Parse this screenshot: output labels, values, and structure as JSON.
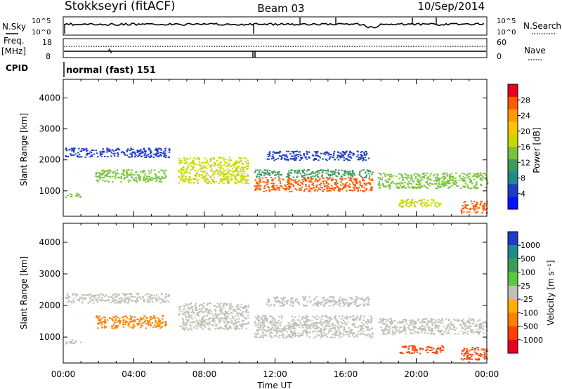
{
  "header": {
    "station": "Stokkseyri (fitACF)",
    "beam": "Beam 03",
    "date": "10/Sep/2014"
  },
  "nsky_panel": {
    "left_label": "N.Sky",
    "right_label": "N.Search",
    "left_ticks": [
      "10^5",
      "10^0"
    ],
    "right_ticks": [
      "10^5",
      "10^0"
    ]
  },
  "freq_panel": {
    "left_label": "Freq.",
    "left_unit": "[MHz]",
    "right_label": "Nave",
    "left_ticks": [
      "18",
      "8"
    ],
    "right_ticks": [
      "60",
      "0"
    ]
  },
  "cpid_panel": {
    "label": "CPID",
    "program": "normal (fast) 151"
  },
  "chart_data": [
    {
      "type": "heatmap",
      "title": "",
      "xlabel": "",
      "ylabel": "Slant Range [km]",
      "x_ticks": [
        "00:00",
        "04:00",
        "08:00",
        "12:00",
        "16:00",
        "20:00",
        "00:00"
      ],
      "y_ticks": [
        "1000",
        "2000",
        "3000",
        "4000"
      ],
      "colorbar_label": "Power [dB]",
      "colorbar_ticks": [
        "28",
        "24",
        "20",
        "16",
        "12",
        "8",
        "4"
      ],
      "colorbar_colors": [
        "#e8001e",
        "#ff5a00",
        "#ff9a00",
        "#ffc400",
        "#c8d800",
        "#78c43c",
        "#3c9a5a",
        "#1e8c8c",
        "#1e3cc8",
        "#0014ff"
      ],
      "x_range_hours": [
        0,
        24
      ],
      "y_range_km": [
        180,
        4600
      ],
      "echo_regions": [
        {
          "t_start": 0.1,
          "t_end": 1.0,
          "r_low": 800,
          "r_high": 950,
          "dB": 14
        },
        {
          "t_start": 0.1,
          "t_end": 6.0,
          "r_low": 2100,
          "r_high": 2400,
          "dB": 6
        },
        {
          "t_start": 1.8,
          "t_end": 5.8,
          "r_low": 1300,
          "r_high": 1700,
          "dB": 14
        },
        {
          "t_start": 6.5,
          "t_end": 10.5,
          "r_low": 1250,
          "r_high": 2100,
          "dB": 18
        },
        {
          "t_start": 10.8,
          "t_end": 17.5,
          "r_low": 1000,
          "r_high": 1450,
          "dB": 26
        },
        {
          "t_start": 10.8,
          "t_end": 17.5,
          "r_low": 1450,
          "r_high": 1700,
          "dB": 12
        },
        {
          "t_start": 11.5,
          "t_end": 17.3,
          "r_low": 2000,
          "r_high": 2300,
          "dB": 6
        },
        {
          "t_start": 17.8,
          "t_end": 24.0,
          "r_low": 1100,
          "r_high": 1600,
          "dB": 14
        },
        {
          "t_start": 19.0,
          "t_end": 21.5,
          "r_low": 500,
          "r_high": 750,
          "dB": 18
        },
        {
          "t_start": 22.5,
          "t_end": 24.0,
          "r_low": 300,
          "r_high": 700,
          "dB": 26
        }
      ]
    },
    {
      "type": "heatmap",
      "title": "",
      "xlabel": "Time UT",
      "ylabel": "Slant Range [km]",
      "x_ticks": [
        "00:00",
        "04:00",
        "08:00",
        "12:00",
        "16:00",
        "20:00",
        "00:00"
      ],
      "y_ticks": [
        "1000",
        "2000",
        "3000",
        "4000"
      ],
      "colorbar_label": "Velocity  [m s⁻¹]",
      "colorbar_ticks": [
        "1000",
        "500",
        "100",
        "25",
        "-25",
        "-100",
        "-500",
        "-1000"
      ],
      "colorbar_colors": [
        "#1e3cc8",
        "#1e8c8c",
        "#3c9a5a",
        "#5ac83c",
        "#c0c0b8",
        "#ffb000",
        "#ff8000",
        "#ff4000",
        "#e8001e"
      ],
      "x_range_hours": [
        0,
        24
      ],
      "y_range_km": [
        180,
        4600
      ],
      "echo_regions": [
        {
          "t_start": 0.1,
          "t_end": 1.0,
          "r_low": 800,
          "r_high": 950,
          "velocity": 0
        },
        {
          "t_start": 0.1,
          "t_end": 6.0,
          "r_low": 2100,
          "r_high": 2400,
          "velocity": 0
        },
        {
          "t_start": 1.8,
          "t_end": 5.8,
          "r_low": 1300,
          "r_high": 1700,
          "velocity": -300
        },
        {
          "t_start": 6.5,
          "t_end": 10.5,
          "r_low": 1250,
          "r_high": 2100,
          "velocity": 0
        },
        {
          "t_start": 10.8,
          "t_end": 17.5,
          "r_low": 1000,
          "r_high": 1700,
          "velocity": 0
        },
        {
          "t_start": 11.5,
          "t_end": 17.3,
          "r_low": 2000,
          "r_high": 2300,
          "velocity": 0
        },
        {
          "t_start": 17.8,
          "t_end": 24.0,
          "r_low": 1100,
          "r_high": 1600,
          "velocity": 0
        },
        {
          "t_start": 19.0,
          "t_end": 21.5,
          "r_low": 500,
          "r_high": 750,
          "velocity": -500
        },
        {
          "t_start": 22.5,
          "t_end": 24.0,
          "r_low": 300,
          "r_high": 700,
          "velocity": -700
        }
      ]
    }
  ]
}
